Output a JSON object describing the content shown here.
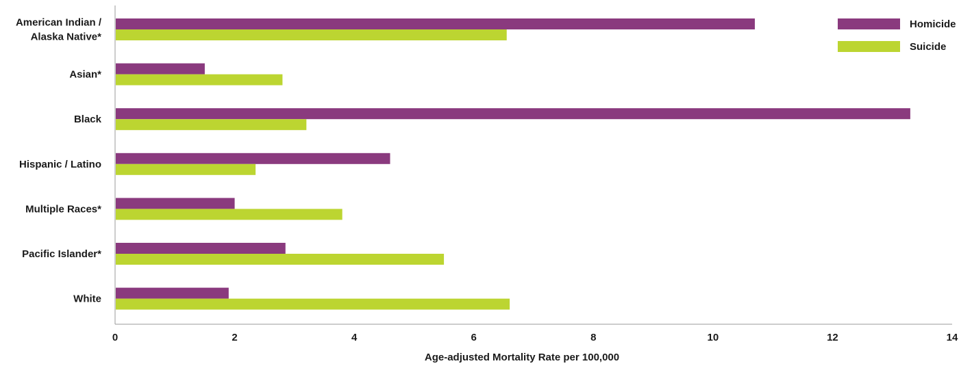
{
  "chart_data": {
    "type": "bar",
    "orientation": "horizontal",
    "categories": [
      [
        "American Indian /",
        "Alaska Native*"
      ],
      [
        "Asian*"
      ],
      [
        "Black"
      ],
      [
        "Hispanic / Latino"
      ],
      [
        "Multiple Races*"
      ],
      [
        "Pacific Islander*"
      ],
      [
        "White"
      ]
    ],
    "series": [
      {
        "name": "Homicide",
        "color": "#8a3a7e",
        "values": [
          10.7,
          1.5,
          13.3,
          4.6,
          2.0,
          2.85,
          1.9
        ]
      },
      {
        "name": "Suicide",
        "color": "#bcd531",
        "values": [
          6.55,
          2.8,
          3.2,
          2.35,
          3.8,
          5.5,
          6.6
        ]
      }
    ],
    "xlabel": "Age-adjusted Mortality Rate per 100,000",
    "ylabel": "",
    "xlim": [
      0,
      14
    ],
    "xticks": [
      "0",
      "2",
      "4",
      "6",
      "8",
      "10",
      "12",
      "14"
    ],
    "grid": false,
    "legend_position": "top-right"
  }
}
